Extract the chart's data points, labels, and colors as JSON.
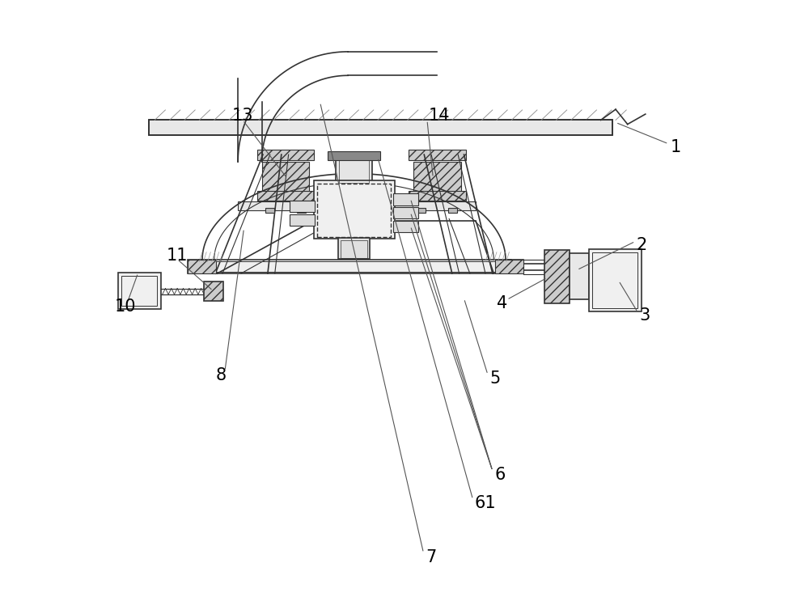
{
  "bg_color": "#ffffff",
  "line_color": "#333333",
  "label_color": "#000000",
  "figsize": [
    10.0,
    7.38
  ],
  "dpi": 100
}
